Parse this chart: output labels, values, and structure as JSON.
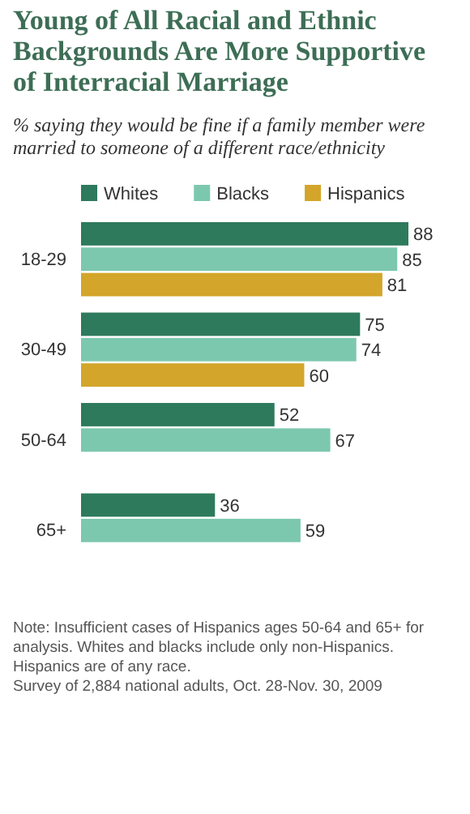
{
  "chart_data": {
    "type": "bar",
    "orientation": "horizontal",
    "title": "Young of All Racial and Ethnic Backgrounds Are More Supportive of Interracial Marriage",
    "subtitle": "% saying they would be fine if a family member were married to someone of a different race/ethnicity",
    "categories": [
      "18-29",
      "30-49",
      "50-64",
      "65+"
    ],
    "series": [
      {
        "name": "Whites",
        "color": "#2e7a5c",
        "values": [
          88,
          75,
          52,
          36
        ]
      },
      {
        "name": "Blacks",
        "color": "#7cc8ae",
        "values": [
          85,
          74,
          67,
          59
        ]
      },
      {
        "name": "Hispanics",
        "color": "#d3a52a",
        "values": [
          81,
          60,
          null,
          null
        ]
      }
    ],
    "data_labels": true,
    "legend": "top",
    "annotations": [
      "Note: Insufficient cases of Hispanics ages 50-64 and 65+ for analysis. Whites and blacks include only non-Hispanics. Hispanics are of any race.",
      "Survey of 2,884 national adults, Oct. 28-Nov. 30, 2009"
    ]
  }
}
